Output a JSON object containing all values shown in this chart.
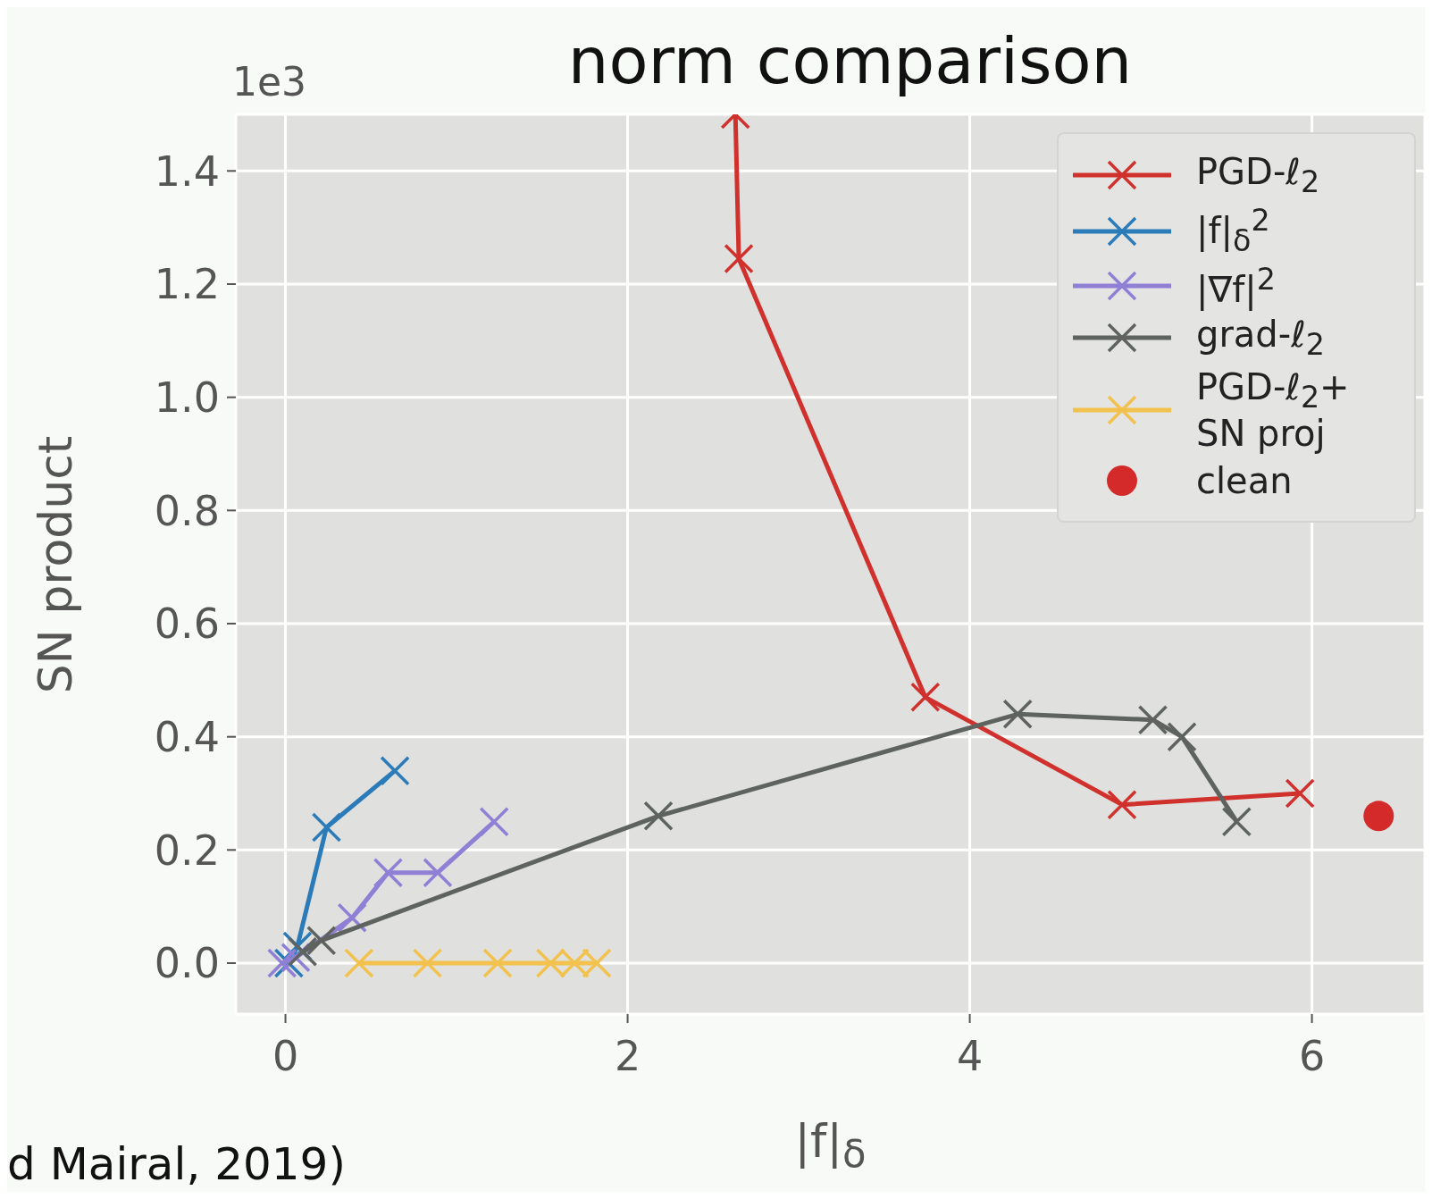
{
  "chart_data": {
    "type": "line",
    "title": "norm comparison",
    "xlabel": "|f|$_{δ}$",
    "ylabel": "SN product",
    "annotations": [
      "1e3",
      "d Mairal, 2019)"
    ],
    "xlim": [
      -0.29,
      6.66
    ],
    "ylim": [
      -0.09,
      1.5
    ],
    "xticks": [
      0,
      2,
      4,
      6
    ],
    "yticks": [
      {
        "value": 0,
        "label": "0.0"
      },
      {
        "value": 0.2,
        "label": "0.2"
      },
      {
        "value": 0.4,
        "label": "0.4"
      },
      {
        "value": 0.6,
        "label": "0.6"
      },
      {
        "value": 0.8,
        "label": "0.8"
      },
      {
        "value": 1,
        "label": "1.0"
      },
      {
        "value": 1.2,
        "label": "1.2"
      },
      {
        "value": 1.4,
        "label": "1.4"
      }
    ],
    "grid": true,
    "legend": "top right",
    "marker": "cross",
    "line_style": "solid",
    "series": [
      {
        "name": "PGD-ℓ$_{2}$",
        "color": "#d0312d",
        "x": [
          2.63,
          2.65,
          3.74,
          4.89,
          5.93
        ],
        "values": [
          1.5,
          1.245,
          0.47,
          0.28,
          0.3
        ]
      },
      {
        "name": "|f|$_{δ}$$^{2}$",
        "color": "#2b7bb9",
        "x": [
          0.02,
          0.07,
          0.24,
          0.64
        ],
        "values": [
          0,
          0.03,
          0.24,
          0.34
        ]
      },
      {
        "name": "|∇f|$^{2}$",
        "color": "#8f80d6",
        "x": [
          -0.02,
          0.06,
          0.39,
          0.6,
          0.89,
          1.22
        ],
        "values": [
          0,
          0.01,
          0.08,
          0.16,
          0.16,
          0.25
        ]
      },
      {
        "name": "grad-ℓ$_{2}$",
        "color": "#5f6360",
        "x": [
          0.1,
          0.21,
          2.18,
          4.28,
          5.07,
          5.24,
          5.56
        ],
        "values": [
          0.02,
          0.04,
          0.26,
          0.44,
          0.43,
          0.4,
          0.25
        ]
      },
      {
        "name": "PGD-ℓ$_{2}$+ SN proj",
        "color": "#f2c14e",
        "x": [
          0.43,
          0.83,
          1.24,
          1.55,
          1.69,
          1.82
        ],
        "values": [
          0,
          0,
          0,
          0,
          0,
          0
        ]
      },
      {
        "name": "clean",
        "type": "scatter",
        "marker": "circle",
        "color": "#d42a2a",
        "x": [
          6.39
        ],
        "values": [
          0.26
        ]
      }
    ]
  }
}
